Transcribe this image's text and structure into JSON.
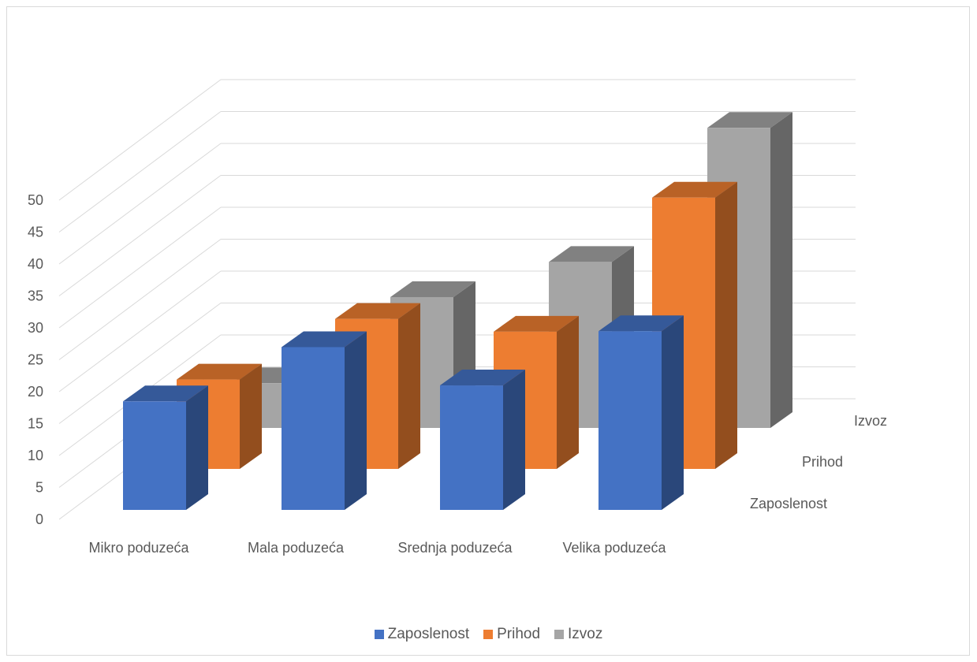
{
  "chart_data": {
    "type": "bar",
    "subtype": "3d-column",
    "categories": [
      "Mikro poduzeća",
      "Mala poduzeća",
      "Srednja poduzeća",
      "Velika poduzeća"
    ],
    "series": [
      {
        "name": "Zaposlenost",
        "color": "#4472C4",
        "values": [
          17,
          25.5,
          19.5,
          28
        ]
      },
      {
        "name": "Prihod",
        "color": "#ED7D31",
        "values": [
          14,
          23.5,
          21.5,
          42.5
        ]
      },
      {
        "name": "Izvoz",
        "color": "#A5A5A5",
        "values": [
          7,
          20.5,
          26,
          47
        ]
      }
    ],
    "ylim": [
      0,
      50
    ],
    "yticks": [
      "0",
      "5",
      "10",
      "15",
      "20",
      "25",
      "30",
      "35",
      "40",
      "45",
      "50"
    ],
    "depth_labels": [
      "Zaposlenost",
      "Prihod",
      "Izvoz"
    ],
    "grid": true,
    "legend_position": "bottom"
  }
}
